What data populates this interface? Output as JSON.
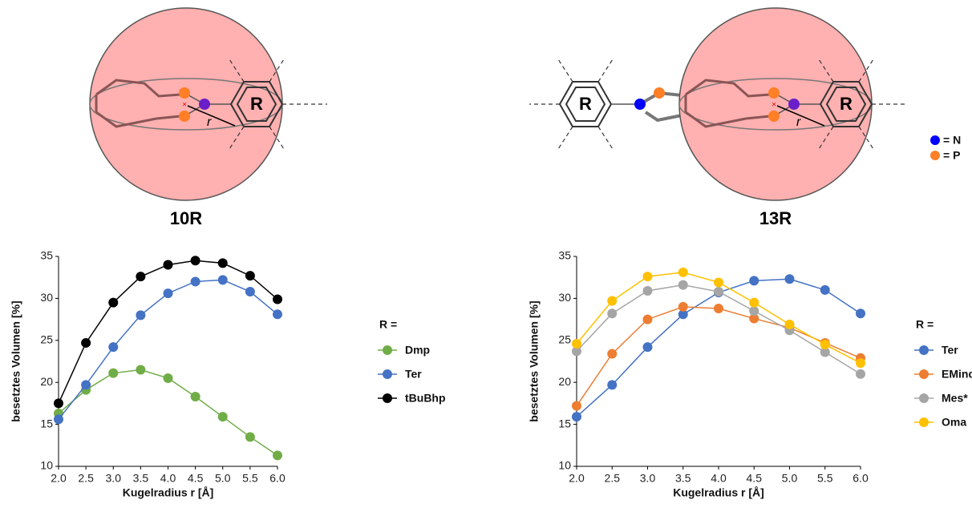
{
  "figure": {
    "left_label": "10R",
    "right_label": "13R",
    "ring_label": "R",
    "radius_label": "r",
    "atom_legend": [
      {
        "text": "= N",
        "color": "#0000ff"
      },
      {
        "text": "= P",
        "color": "#ff7f27"
      }
    ]
  },
  "chart_data": [
    {
      "type": "line",
      "xlabel": "Kugelradius r [Å]",
      "ylabel": "besetztes Volumen [%]",
      "legend_title": "R =",
      "x": [
        2.0,
        2.5,
        3.0,
        3.5,
        4.0,
        4.5,
        5.0,
        5.5,
        6.0
      ],
      "xlim": [
        2,
        6
      ],
      "xticks": [
        {
          "value": 2,
          "label": "2.0"
        },
        {
          "value": 2.5,
          "label": "2.5"
        },
        {
          "value": 3,
          "label": "3.0"
        },
        {
          "value": 3.5,
          "label": "3.5"
        },
        {
          "value": 4,
          "label": "4.0"
        },
        {
          "value": 4.5,
          "label": "4.5"
        },
        {
          "value": 5,
          "label": "5.0"
        },
        {
          "value": 5.5,
          "label": "5.5"
        },
        {
          "value": 6,
          "label": "6.0"
        }
      ],
      "ylim": [
        10,
        35
      ],
      "yticks": [
        10,
        15,
        20,
        25,
        30,
        35
      ],
      "series": [
        {
          "name": "Dmp",
          "color": "#70ad47",
          "values": [
            16.3,
            19.1,
            21.1,
            21.5,
            20.5,
            18.3,
            15.9,
            13.5,
            11.3
          ]
        },
        {
          "name": "Ter",
          "color": "#4472c4",
          "values": [
            15.6,
            19.7,
            24.2,
            28.0,
            30.6,
            32.0,
            32.2,
            30.8,
            28.1
          ]
        },
        {
          "name": "tBuBhp",
          "color": "#000000",
          "values": [
            17.5,
            24.7,
            29.5,
            32.6,
            34.0,
            34.5,
            34.2,
            32.7,
            29.9
          ]
        }
      ]
    },
    {
      "type": "line",
      "xlabel": "Kugelradius r [Å]",
      "ylabel": "besetztes Volumen [%]",
      "legend_title": "R =",
      "x": [
        2.0,
        2.5,
        3.0,
        3.5,
        4.0,
        4.5,
        5.0,
        5.5,
        6.0
      ],
      "xlim": [
        2,
        6
      ],
      "xticks": [
        {
          "value": 2,
          "label": "2.0"
        },
        {
          "value": 2.5,
          "label": "2.5"
        },
        {
          "value": 3,
          "label": "3.0"
        },
        {
          "value": 3.5,
          "label": "3.5"
        },
        {
          "value": 4,
          "label": "4.0"
        },
        {
          "value": 4.5,
          "label": "4.5"
        },
        {
          "value": 5,
          "label": "5.0"
        },
        {
          "value": 5.5,
          "label": "5.5"
        },
        {
          "value": 6,
          "label": "6.0"
        }
      ],
      "ylim": [
        10,
        35
      ],
      "yticks": [
        10,
        15,
        20,
        25,
        30,
        35
      ],
      "series": [
        {
          "name": "Ter",
          "color": "#4472c4",
          "values": [
            15.9,
            19.7,
            24.2,
            28.1,
            30.7,
            32.1,
            32.3,
            31.0,
            28.2
          ]
        },
        {
          "name": "EMind",
          "color": "#ed7d31",
          "values": [
            17.2,
            23.4,
            27.5,
            29.0,
            28.8,
            27.6,
            26.5,
            24.7,
            22.9
          ]
        },
        {
          "name": "Mes*",
          "color": "#a5a5a5",
          "values": [
            23.7,
            28.2,
            30.9,
            31.6,
            30.8,
            28.5,
            26.2,
            23.6,
            21.0
          ]
        },
        {
          "name": "Oma",
          "color": "#ffc000",
          "values": [
            24.6,
            29.7,
            32.6,
            33.1,
            31.9,
            29.5,
            26.9,
            24.5,
            22.3
          ]
        }
      ]
    }
  ]
}
